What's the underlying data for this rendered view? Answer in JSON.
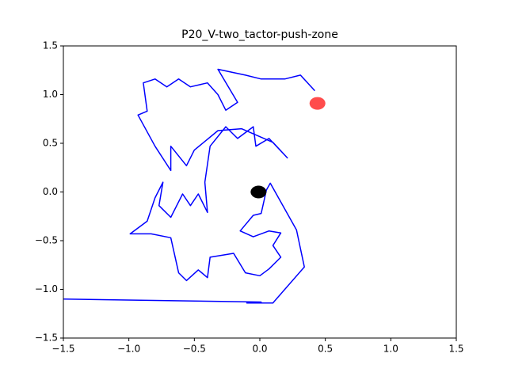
{
  "chart_data": {
    "type": "line",
    "title": "P20_V-two_tactor-push-zone",
    "xlim": [
      -1.5,
      1.5
    ],
    "ylim": [
      -1.5,
      1.5
    ],
    "xticks": [
      {
        "value": -1.5,
        "label": "−1.5"
      },
      {
        "value": -1.0,
        "label": "−1.0"
      },
      {
        "value": -0.5,
        "label": "−0.5"
      },
      {
        "value": 0,
        "label": "0.0"
      },
      0.5,
      {
        "value": 1.0,
        "label": "1.0"
      },
      1.5
    ],
    "yticks": [
      {
        "value": -1.5,
        "label": "−1.5"
      },
      {
        "value": -1.0,
        "label": "−1.0"
      },
      {
        "value": -0.5,
        "label": "−0.5"
      },
      {
        "value": 0,
        "label": "0.0"
      },
      0.5,
      {
        "value": 1.0,
        "label": "1.0"
      },
      1.5
    ],
    "series": [
      {
        "color": "#0000ff",
        "x": [
          -1.5,
          0.01,
          -0.1,
          0.1,
          0.34,
          0.28,
          0.08,
          0.05,
          0.01,
          -0.05,
          -0.15,
          -0.05,
          0.07,
          0.16,
          0.1,
          0.16,
          0.07,
          0.0,
          -0.11,
          -0.2,
          -0.38,
          -0.4,
          -0.47,
          -0.56,
          -0.62,
          -0.68,
          -0.83,
          -0.99,
          -0.86,
          -0.8,
          -0.74,
          -0.77,
          -0.68,
          -0.59,
          -0.53,
          -0.47,
          -0.4,
          -0.42,
          -0.38,
          -0.26,
          -0.17,
          -0.05,
          -0.03,
          0.07,
          0.21,
          0.1,
          -0.14,
          -0.32,
          -0.5,
          -0.56,
          -0.68,
          -0.68,
          -0.8,
          -0.93,
          -0.86,
          -0.89,
          -0.8,
          -0.71,
          -0.62,
          -0.53,
          -0.4,
          -0.32,
          -0.26,
          -0.17,
          -0.32,
          -0.11,
          0.01,
          0.19,
          0.31,
          0.42
        ],
        "y": [
          -1.1,
          -1.13,
          -1.14,
          -1.14,
          -0.77,
          -0.39,
          0.09,
          0.02,
          -0.22,
          -0.24,
          -0.4,
          -0.46,
          -0.4,
          -0.42,
          -0.55,
          -0.67,
          -0.79,
          -0.86,
          -0.83,
          -0.63,
          -0.67,
          -0.88,
          -0.8,
          -0.91,
          -0.83,
          -0.47,
          -0.43,
          -0.43,
          -0.3,
          -0.06,
          0.1,
          -0.14,
          -0.26,
          -0.02,
          -0.14,
          -0.02,
          -0.21,
          0.1,
          0.47,
          0.67,
          0.55,
          0.67,
          0.47,
          0.55,
          0.35,
          0.51,
          0.65,
          0.63,
          0.43,
          0.27,
          0.47,
          0.22,
          0.47,
          0.79,
          0.83,
          1.12,
          1.16,
          1.08,
          1.16,
          1.08,
          1.12,
          1.0,
          0.84,
          0.92,
          1.26,
          1.2,
          1.16,
          1.16,
          1.2,
          1.04
        ]
      }
    ],
    "markers": [
      {
        "x": 0.44,
        "y": 0.91,
        "color": "#ff0000",
        "alpha": 0.7
      },
      {
        "x": -0.01,
        "y": 0.0,
        "color": "#000000",
        "alpha": 1
      }
    ]
  }
}
